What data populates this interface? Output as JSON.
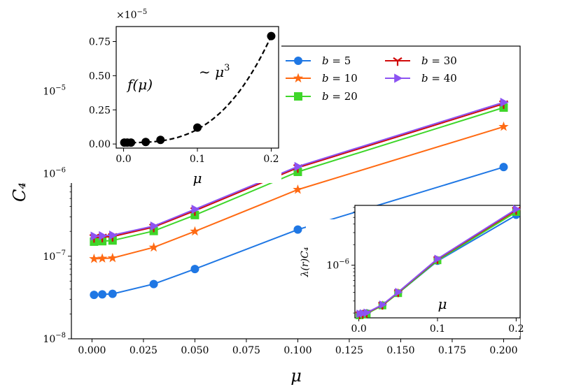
{
  "chart_data": [
    {
      "type": "line",
      "yscale": "log",
      "xlabel": "μ",
      "ylabel": "C₄",
      "xlim": [
        -0.01,
        0.208
      ],
      "ylim": [
        1e-08,
        3.5e-05
      ],
      "xticks": [
        0.0,
        0.025,
        0.05,
        0.075,
        0.1,
        0.125,
        0.15,
        0.175,
        0.2
      ],
      "xtick_labels": [
        "0.000",
        "0.025",
        "0.050",
        "0.075",
        "0.100",
        "0.125",
        "0.150",
        "0.175",
        "0.200"
      ],
      "yticks": [
        1e-08,
        1e-07,
        1e-06,
        1e-05
      ],
      "ytick_labels": [
        {
          "base": "10",
          "exp": "−8"
        },
        {
          "base": "10",
          "exp": "−7"
        },
        {
          "base": "10",
          "exp": "−6"
        },
        {
          "base": "10",
          "exp": "−5"
        }
      ],
      "x": [
        0.001,
        0.005,
        0.01,
        0.03,
        0.05,
        0.1,
        0.2
      ],
      "series": [
        {
          "name": "b = 5",
          "var": "b",
          "value": "5",
          "color": "#1f77e4",
          "marker": "circle",
          "values": [
            3.4e-08,
            3.45e-08,
            3.5e-08,
            4.6e-08,
            7e-08,
            2.1e-07,
            1.2e-06
          ]
        },
        {
          "name": "b = 10",
          "var": "b",
          "value": "10",
          "color": "#ff6a13",
          "marker": "star",
          "values": [
            9.3e-08,
            9.4e-08,
            9.5e-08,
            1.28e-07,
            2e-07,
            6.4e-07,
            3.7e-06
          ]
        },
        {
          "name": "b = 20",
          "var": "b",
          "value": "20",
          "color": "#3fd62a",
          "marker": "square",
          "values": [
            1.5e-07,
            1.52e-07,
            1.55e-07,
            2.02e-07,
            3.15e-07,
            1.05e-06,
            6.3e-06
          ]
        },
        {
          "name": "b = 30",
          "var": "b",
          "value": "30",
          "color": "#d10a0a",
          "marker": "tri_down",
          "values": [
            1.68e-07,
            1.7e-07,
            1.73e-07,
            2.25e-07,
            3.55e-07,
            1.18e-06,
            7e-06
          ]
        },
        {
          "name": "b = 40",
          "var": "b",
          "value": "40",
          "color": "#8c53f2",
          "marker": "triangle_right",
          "values": [
            1.75e-07,
            1.77e-07,
            1.8e-07,
            2.32e-07,
            3.7e-07,
            1.22e-06,
            7.3e-06
          ]
        }
      ],
      "legend_location": "top-right"
    },
    {
      "type": "scatter",
      "title": "inset-top-left",
      "ylabel": "f(μ)",
      "xlabel": "μ",
      "offset_text": {
        "base": "×10",
        "exp": "−5"
      },
      "annotation": {
        "prefix": "∼ ",
        "base": "μ",
        "exp": "3"
      },
      "xlim": [
        -0.01,
        0.21
      ],
      "ylim": [
        -0.03,
        0.86
      ],
      "xticks": [
        0.0,
        0.1,
        0.2
      ],
      "xtick_labels": [
        "0.0",
        "0.1",
        "0.2"
      ],
      "yticks": [
        0.0,
        0.25,
        0.5,
        0.75
      ],
      "ytick_labels": [
        "0.00",
        "0.25",
        "0.50",
        "0.75"
      ],
      "x": [
        0.001,
        0.005,
        0.01,
        0.03,
        0.05,
        0.1,
        0.2
      ],
      "values": [
        0.01,
        0.01,
        0.01,
        0.015,
        0.03,
        0.12,
        0.79
      ],
      "fit": "dashed cubic curve"
    },
    {
      "type": "line",
      "title": "inset-bottom-right",
      "yscale": "log",
      "xlabel": "μ",
      "ylabel": "λ(r)C₄",
      "xlim": [
        -0.005,
        0.205
      ],
      "ylim": [
        1.7e-07,
        7.5e-06
      ],
      "xticks": [
        0.0,
        0.1,
        0.2
      ],
      "xtick_labels": [
        "0.0",
        "0.1",
        "0.2"
      ],
      "yticks": [
        1e-06
      ],
      "ytick_labels": [
        {
          "base": "10",
          "exp": "−6"
        }
      ],
      "x": [
        0.001,
        0.005,
        0.01,
        0.03,
        0.05,
        0.1,
        0.2
      ],
      "series": [
        {
          "name": "b = 5",
          "color": "#1f77e4",
          "marker": "circle",
          "values": [
            1.9e-07,
            1.95e-07,
            2e-07,
            2.6e-07,
            3.9e-07,
            1.15e-06,
            5.4e-06
          ]
        },
        {
          "name": "b = 10",
          "color": "#ff6a13",
          "marker": "star",
          "values": [
            1.88e-07,
            1.92e-07,
            1.97e-07,
            2.6e-07,
            3.95e-07,
            1.18e-06,
            6.1e-06
          ]
        },
        {
          "name": "b = 20",
          "color": "#3fd62a",
          "marker": "square",
          "values": [
            1.85e-07,
            1.9e-07,
            1.95e-07,
            2.58e-07,
            3.9e-07,
            1.18e-06,
            6e-06
          ]
        },
        {
          "name": "b = 30",
          "color": "#d10a0a",
          "marker": "tri_down",
          "values": [
            1.9e-07,
            1.94e-07,
            2e-07,
            2.62e-07,
            4e-07,
            1.22e-06,
            6.4e-06
          ]
        },
        {
          "name": "b = 40",
          "color": "#8c53f2",
          "marker": "triangle_right",
          "values": [
            1.95e-07,
            1.98e-07,
            2.02e-07,
            2.65e-07,
            4.05e-07,
            1.24e-06,
            6.6e-06
          ]
        }
      ]
    }
  ]
}
